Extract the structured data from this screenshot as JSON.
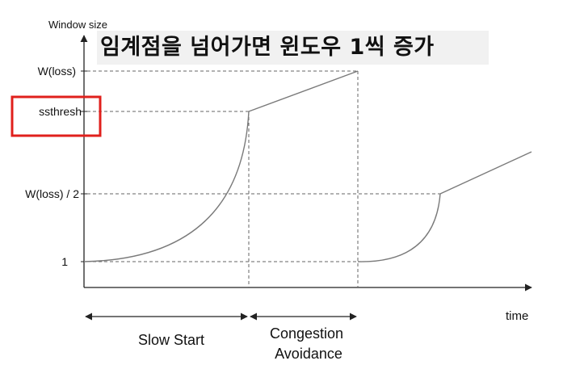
{
  "axes": {
    "y_label": "Window size",
    "x_label": "time"
  },
  "caption": "임계점을 넘어가면 윈도우 1씩 증가",
  "y_ticks": [
    "W(loss)",
    "ssthresh",
    "W(loss) / 2",
    "1"
  ],
  "phases": [
    "Slow Start",
    "Congestion\nAvoidance"
  ],
  "highlight": {
    "target": "ssthresh",
    "color": "#e0201c"
  },
  "colors": {
    "curve": "#7a7a7a",
    "axis": "#222222",
    "guide": "#666666"
  }
}
